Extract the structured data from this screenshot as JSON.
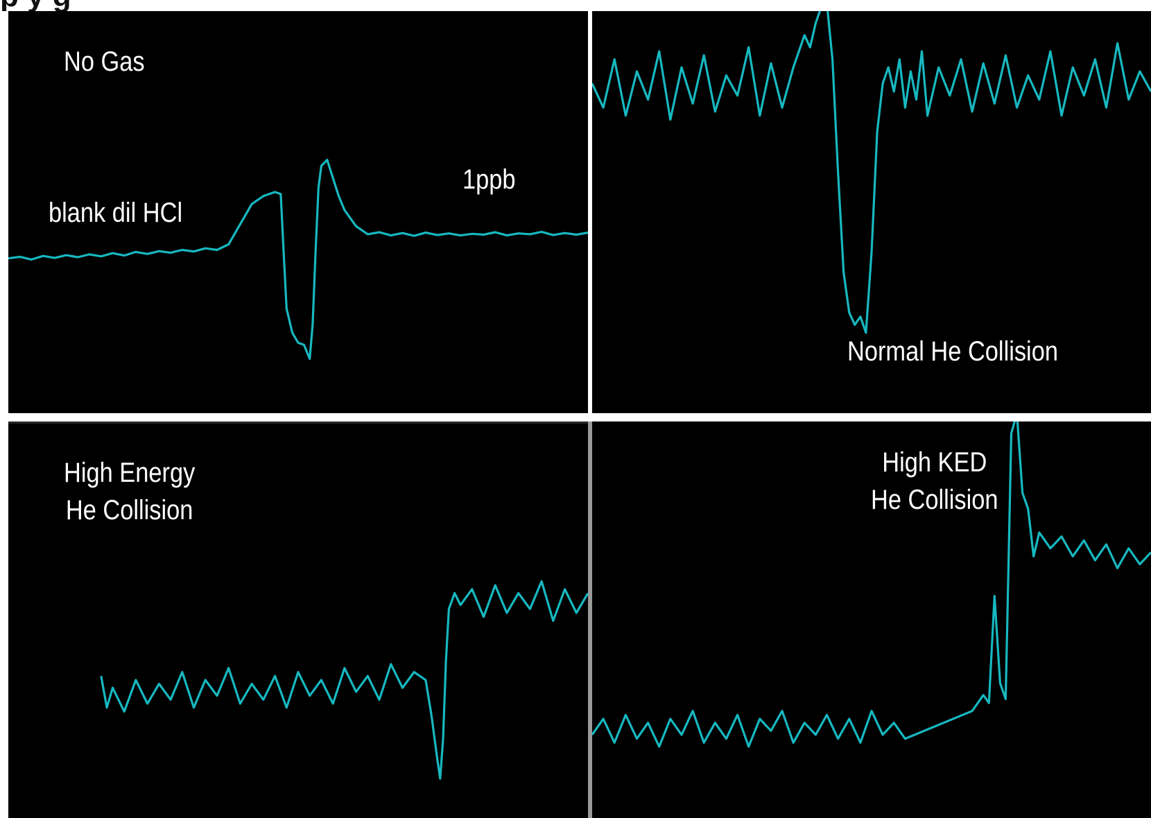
{
  "header": {
    "title_fragment": "p    y    g"
  },
  "chart_data": [
    {
      "type": "line",
      "title": "",
      "xlabel": "",
      "ylabel": "",
      "annotations": [
        "No Gas",
        "blank dil HCl",
        "1ppb"
      ],
      "grid": false,
      "line_color": "#17b8c0",
      "xlim": [
        0,
        100
      ],
      "ylim": [
        0,
        100
      ],
      "series": [
        {
          "x": [
            0,
            2,
            4,
            6,
            8,
            10,
            12,
            14,
            16,
            18,
            20,
            22,
            24,
            26,
            28,
            30,
            32,
            34,
            36,
            38,
            40,
            42,
            44,
            45,
            46,
            47,
            47.5,
            48,
            49,
            50,
            51,
            52,
            52.5,
            53,
            53.5,
            54,
            55,
            56,
            57,
            58,
            59,
            60,
            62,
            64,
            66,
            68,
            70,
            72,
            74,
            76,
            78,
            80,
            82,
            84,
            86,
            88,
            90,
            92,
            94,
            96,
            98,
            100
          ],
          "y": [
            38.5,
            38.9,
            38.2,
            39.1,
            38.6,
            39.3,
            38.8,
            39.5,
            39.0,
            39.8,
            39.2,
            40.1,
            39.6,
            40.3,
            39.9,
            40.6,
            40.2,
            41.0,
            40.6,
            42.0,
            47.0,
            52.0,
            54.0,
            54.5,
            55.0,
            54.5,
            40.0,
            26.0,
            20.0,
            17.5,
            17.0,
            13.5,
            22.0,
            40.0,
            56.0,
            61.5,
            63.0,
            58.5,
            54.0,
            50.5,
            48.5,
            46.5,
            44.5,
            45.0,
            44.2,
            44.8,
            44.1,
            44.9,
            44.3,
            44.7,
            44.2,
            44.6,
            44.4,
            45.0,
            44.2,
            44.7,
            44.5,
            45.1,
            44.3,
            44.8,
            44.4,
            44.9
          ]
        }
      ]
    },
    {
      "type": "line",
      "title": "",
      "xlabel": "",
      "ylabel": "",
      "annotations": [
        "Normal He Collision"
      ],
      "grid": false,
      "line_color": "#17b8c0",
      "xlim": [
        0,
        100
      ],
      "ylim": [
        0,
        100
      ],
      "series": [
        {
          "x": [
            0,
            2,
            4,
            6,
            8,
            10,
            12,
            14,
            16,
            18,
            20,
            22,
            24,
            26,
            28,
            30,
            32,
            34,
            36,
            37,
            38,
            39,
            40,
            41,
            42,
            43,
            44,
            45,
            46,
            47,
            48,
            49,
            50,
            51,
            52,
            53,
            54,
            55,
            56,
            57,
            58,
            59,
            60,
            62,
            64,
            66,
            68,
            70,
            72,
            74,
            76,
            78,
            80,
            82,
            84,
            86,
            88,
            90,
            92,
            94,
            96,
            98,
            100
          ],
          "y": [
            82,
            76,
            88,
            74,
            85,
            78,
            90,
            73,
            86,
            77,
            89,
            75,
            84,
            79,
            91,
            74,
            87,
            76,
            86,
            90,
            94,
            91,
            97,
            101,
            102,
            88,
            60,
            35,
            25,
            22,
            24,
            20,
            40,
            70,
            82,
            86,
            80,
            88,
            76,
            85,
            78,
            90,
            74,
            86,
            79,
            88,
            75,
            87,
            77,
            89,
            76,
            84,
            78,
            90,
            74,
            86,
            79,
            88,
            76,
            92,
            78,
            85,
            80
          ]
        }
      ]
    },
    {
      "type": "line",
      "title": "",
      "xlabel": "",
      "ylabel": "",
      "annotations": [
        "High Energy\nHe Collision"
      ],
      "grid": false,
      "line_color": "#17b8c0",
      "xlim": [
        0,
        100
      ],
      "ylim": [
        0,
        100
      ],
      "series": [
        {
          "x": [
            16,
            17,
            18,
            20,
            22,
            24,
            26,
            28,
            30,
            32,
            34,
            36,
            38,
            40,
            42,
            44,
            46,
            48,
            50,
            52,
            54,
            56,
            58,
            60,
            62,
            64,
            66,
            68,
            70,
            72,
            73,
            74,
            74.5,
            75,
            75.5,
            76,
            77,
            78,
            80,
            82,
            84,
            86,
            88,
            90,
            92,
            94,
            96,
            98,
            100
          ],
          "y": [
            36,
            28,
            33,
            27,
            35,
            29,
            34,
            30,
            37,
            28,
            35,
            31,
            38,
            29,
            34,
            30,
            36,
            28,
            37,
            31,
            35,
            29,
            38,
            32,
            36,
            30,
            39,
            33,
            37,
            35,
            26,
            15,
            10,
            20,
            40,
            53,
            57,
            54,
            58,
            51,
            59,
            52,
            57,
            53,
            60,
            50,
            58,
            52,
            57
          ]
        }
      ]
    },
    {
      "type": "line",
      "title": "",
      "xlabel": "",
      "ylabel": "",
      "annotations": [
        "High KED\nHe Collision"
      ],
      "grid": false,
      "line_color": "#17b8c0",
      "xlim": [
        0,
        100
      ],
      "ylim": [
        0,
        100
      ],
      "series": [
        {
          "x": [
            0,
            2,
            4,
            6,
            8,
            10,
            12,
            14,
            16,
            18,
            20,
            22,
            24,
            26,
            28,
            30,
            32,
            34,
            36,
            38,
            40,
            42,
            44,
            46,
            48,
            50,
            52,
            54,
            56,
            68,
            70,
            71,
            72,
            73,
            74,
            75,
            76,
            77,
            78,
            79,
            80,
            81,
            82,
            84,
            86,
            88,
            90,
            92,
            94,
            96,
            98,
            100
          ],
          "y": [
            21,
            25,
            19,
            26,
            20,
            24,
            18,
            25,
            21,
            27,
            19,
            24,
            20,
            26,
            18,
            25,
            22,
            27,
            19,
            24,
            21,
            26,
            20,
            25,
            19,
            27,
            21,
            24,
            20,
            27,
            31,
            29,
            56,
            34,
            30,
            97,
            102,
            82,
            78,
            66,
            72,
            70,
            68,
            71,
            66,
            70,
            65,
            69,
            63,
            68,
            64,
            67
          ]
        }
      ]
    }
  ]
}
